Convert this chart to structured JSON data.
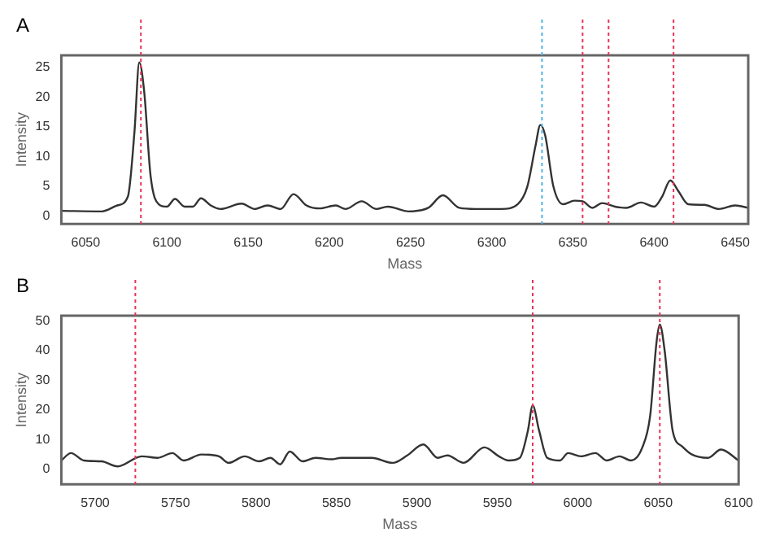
{
  "chart_data": [
    {
      "type": "line",
      "xlabel": "Mass",
      "ylabel": "Intensity",
      "annotations": [
        "A"
      ],
      "xlim": [
        6035,
        6458
      ],
      "xticks": [
        6050,
        6100,
        6150,
        6200,
        6250,
        6300,
        6350,
        6400,
        6450
      ],
      "ylim": [
        -1.3,
        27
      ],
      "yticks": [
        0,
        5,
        10,
        15,
        20,
        25
      ],
      "grid": false,
      "legend": false,
      "marker": "none",
      "line_style": "solid",
      "ref_lines": [
        {
          "axis": "x",
          "value": 6084,
          "color": "#e8335a",
          "line_style": "dotted"
        },
        {
          "axis": "x",
          "value": 6331,
          "color": "#4fb3e0",
          "line_style": "dotted"
        },
        {
          "axis": "x",
          "value": 6356,
          "color": "#e8335a",
          "line_style": "dotted"
        },
        {
          "axis": "x",
          "value": 6372,
          "color": "#e8335a",
          "line_style": "dotted"
        },
        {
          "axis": "x",
          "value": 6412,
          "color": "#e8335a",
          "line_style": "dotted"
        }
      ],
      "series": [
        {
          "color": "#333333",
          "x": [
            6035,
            6060,
            6069.5,
            6076,
            6080,
            6083,
            6086,
            6090,
            6095,
            6100,
            6105,
            6111,
            6116,
            6121,
            6127,
            6133,
            6146,
            6154,
            6162,
            6170,
            6178,
            6186,
            6194,
            6204,
            6210,
            6220,
            6229,
            6236,
            6249,
            6261,
            6270,
            6280,
            6290,
            6306,
            6316,
            6322,
            6327,
            6330,
            6333,
            6338,
            6344,
            6351,
            6356,
            6362,
            6368,
            6376,
            6383,
            6392,
            6400,
            6405,
            6410,
            6415,
            6421,
            6431,
            6440,
            6450,
            6458
          ],
          "values": [
            0.9,
            0.8,
            1.8,
            3.3,
            14,
            25.8,
            21,
            6.7,
            2,
            1.6,
            2.9,
            1.6,
            1.6,
            3.0,
            1.8,
            1.2,
            2.1,
            1.2,
            1.8,
            1.2,
            3.7,
            1.8,
            1.3,
            1.8,
            1.2,
            2.5,
            1.2,
            1.6,
            0.8,
            1.4,
            3.5,
            1.4,
            1.2,
            1.2,
            2,
            5,
            11.8,
            15.3,
            13.5,
            5,
            2,
            2.6,
            2.5,
            1.4,
            2.2,
            1.6,
            1.4,
            2.3,
            1.6,
            3.3,
            6,
            4.2,
            2,
            1.9,
            1.2,
            1.8,
            1.4
          ]
        }
      ]
    },
    {
      "type": "line",
      "xlabel": "Mass",
      "ylabel": "Intensity",
      "annotations": [
        "B"
      ],
      "xlim": [
        5679,
        6100
      ],
      "xticks": [
        5700,
        5750,
        5800,
        5850,
        5900,
        5950,
        6000,
        6050,
        6100
      ],
      "ylim": [
        -5,
        51.7
      ],
      "yticks": [
        0,
        10,
        20,
        30,
        40,
        50
      ],
      "grid": false,
      "legend": false,
      "marker": "none",
      "line_style": "solid",
      "ref_lines": [
        {
          "axis": "x",
          "value": 5725,
          "color": "#e8335a",
          "line_style": "dotted"
        },
        {
          "axis": "x",
          "value": 5972,
          "color": "#e8335a",
          "line_style": "dotted"
        },
        {
          "axis": "x",
          "value": 6051,
          "color": "#e8335a",
          "line_style": "dotted"
        }
      ],
      "series": [
        {
          "color": "#333333",
          "x": [
            5679,
            5685,
            5693,
            5704,
            5714,
            5729,
            5739,
            5748,
            5755,
            5766,
            5777,
            5783,
            5793,
            5802,
            5809,
            5815,
            5821,
            5829,
            5837,
            5847,
            5853,
            5872,
            5885,
            5894,
            5904,
            5913,
            5919,
            5929,
            5942,
            5951,
            5957,
            5964,
            5969,
            5972,
            5976,
            5981,
            5989,
            5994,
            6002,
            6011,
            6018,
            6026,
            6033,
            6040,
            6045,
            6049,
            6051,
            6054,
            6059,
            6065,
            6071,
            6081,
            6089,
            6100
          ],
          "values": [
            3,
            5.5,
            3,
            2.7,
            1,
            4.4,
            3.9,
            5.5,
            3,
            5,
            4.4,
            2.2,
            4.4,
            2.7,
            3.9,
            1.7,
            6,
            2.7,
            3.9,
            3.4,
            3.9,
            3.9,
            2.2,
            4.7,
            8.4,
            3.9,
            4.7,
            2.2,
            7.4,
            4.4,
            3,
            3.9,
            13,
            21.5,
            13,
            3.9,
            3,
            5.5,
            4.4,
            5.5,
            3,
            4.4,
            3,
            7.2,
            18,
            43,
            48.7,
            40,
            13,
            7.7,
            5,
            3.9,
            6.7,
            3
          ]
        }
      ]
    }
  ]
}
